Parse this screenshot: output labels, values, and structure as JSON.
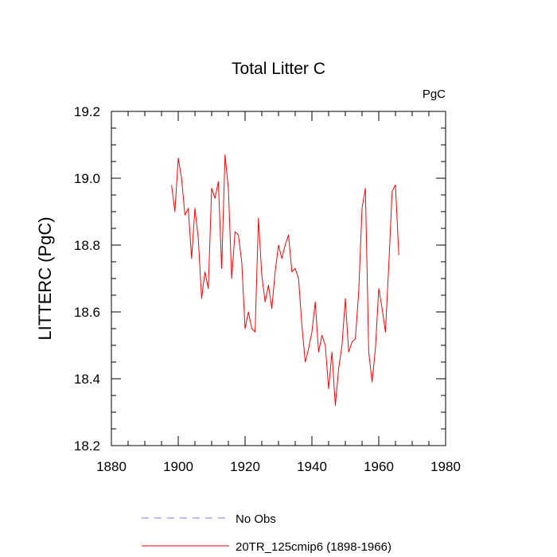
{
  "chart_data": {
    "type": "line",
    "title": "Total Litter C",
    "units_label": "PgC",
    "ylabel": "LITTERC  (PgC)",
    "xlabel": "",
    "xlim": [
      1880,
      1980
    ],
    "ylim": [
      18.2,
      19.2
    ],
    "xticks": [
      1880,
      1900,
      1920,
      1940,
      1960,
      1980
    ],
    "yticks": [
      18.2,
      18.4,
      18.6,
      18.8,
      19.0,
      19.2
    ],
    "ytick_labels": [
      "18.2",
      "18.4",
      "18.6",
      "18.8",
      "19.0",
      "19.2"
    ],
    "grid": false,
    "legend_position": "bottom",
    "series": [
      {
        "name": "No Obs",
        "color": "#7b7bff",
        "dash": true,
        "x": [],
        "y": []
      },
      {
        "name": "20TR_125cmip6 (1898-1966)",
        "color": "#ff0000",
        "dash": false,
        "x": [
          1898,
          1899,
          1900,
          1901,
          1902,
          1903,
          1904,
          1905,
          1906,
          1907,
          1908,
          1909,
          1910,
          1911,
          1912,
          1913,
          1914,
          1915,
          1916,
          1917,
          1918,
          1919,
          1920,
          1921,
          1922,
          1923,
          1924,
          1925,
          1926,
          1927,
          1928,
          1929,
          1930,
          1931,
          1932,
          1933,
          1934,
          1935,
          1936,
          1937,
          1938,
          1939,
          1940,
          1941,
          1942,
          1943,
          1944,
          1945,
          1946,
          1947,
          1948,
          1949,
          1950,
          1951,
          1952,
          1953,
          1954,
          1955,
          1956,
          1957,
          1958,
          1959,
          1960,
          1961,
          1962,
          1963,
          1964,
          1965,
          1966
        ],
        "y": [
          18.98,
          18.9,
          19.06,
          19.0,
          18.89,
          18.91,
          18.76,
          18.91,
          18.82,
          18.64,
          18.72,
          18.67,
          18.97,
          18.94,
          18.99,
          18.73,
          19.07,
          18.97,
          18.7,
          18.84,
          18.83,
          18.75,
          18.55,
          18.6,
          18.55,
          18.54,
          18.88,
          18.71,
          18.63,
          18.68,
          18.61,
          18.72,
          18.8,
          18.76,
          18.8,
          18.83,
          18.72,
          18.73,
          18.7,
          18.56,
          18.45,
          18.49,
          18.54,
          18.63,
          18.48,
          18.53,
          18.5,
          18.37,
          18.48,
          18.32,
          18.43,
          18.5,
          18.64,
          18.48,
          18.51,
          18.52,
          18.66,
          18.91,
          18.97,
          18.48,
          18.39,
          18.49,
          18.67,
          18.61,
          18.54,
          18.74,
          18.96,
          18.98,
          18.77
        ]
      }
    ]
  }
}
